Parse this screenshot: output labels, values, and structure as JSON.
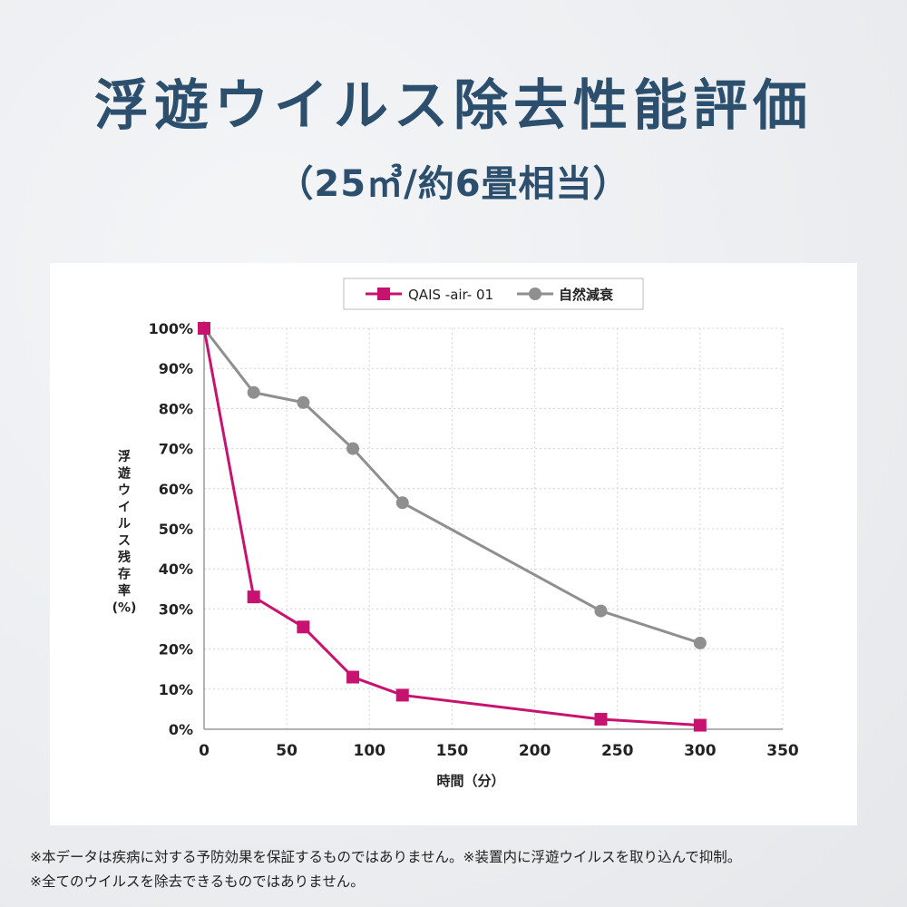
{
  "title": "浮遊ウイルス除去性能評価",
  "subtitle": "（25㎥/約6畳相当）",
  "chart_data": {
    "type": "line",
    "x": [
      0,
      30,
      60,
      90,
      120,
      240,
      300
    ],
    "series": [
      {
        "name": "QAIS -air- 01",
        "values": [
          100,
          33,
          25.5,
          13,
          8.5,
          2.5,
          1
        ],
        "color": "#c7136f",
        "marker": "square"
      },
      {
        "name": "自然減衰",
        "values": [
          100,
          84,
          81.5,
          70,
          56.5,
          29.5,
          21.5
        ],
        "color": "#8f8f8f",
        "marker": "circle"
      }
    ],
    "xlim": [
      0,
      350
    ],
    "ylim": [
      0,
      100
    ],
    "xticks": [
      0,
      50,
      100,
      150,
      200,
      250,
      300,
      350
    ],
    "yticks": [
      0,
      10,
      20,
      30,
      40,
      50,
      60,
      70,
      80,
      90,
      100
    ],
    "ytick_labels": [
      "0%",
      "10%",
      "20%",
      "30%",
      "40%",
      "50%",
      "60%",
      "70%",
      "80%",
      "90%",
      "100%"
    ],
    "xlabel": "時間（分）",
    "ylabel_lines": [
      "浮",
      "遊",
      "ウ",
      "イ",
      "ル",
      "ス",
      "残",
      "存",
      "率",
      "(%)"
    ],
    "grid": true,
    "legend_position": "top-right"
  },
  "notes": [
    "※本データは疾病に対する予防効果を保証するものではありません。※装置内に浮遊ウイルスを取り込んで抑制。",
    "※全てのウイルスを除去できるものではありません。"
  ]
}
